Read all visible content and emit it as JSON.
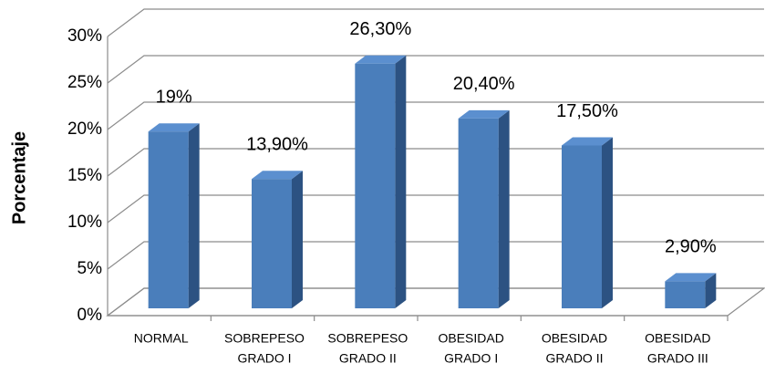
{
  "chart_data": {
    "type": "bar3d",
    "ylabel": "Porcentaje",
    "categories": [
      [
        "NORMAL"
      ],
      [
        "SOBREPESO",
        "GRADO I"
      ],
      [
        "SOBREPESO",
        "GRADO II"
      ],
      [
        "OBESIDAD",
        "GRADO I"
      ],
      [
        "OBESIDAD",
        "GRADO II"
      ],
      [
        "OBESIDAD",
        "GRADO III"
      ]
    ],
    "values": [
      19,
      13.9,
      26.3,
      20.4,
      17.5,
      2.9
    ],
    "value_labels": [
      "19%",
      "13,90%",
      "26,30%",
      "20,40%",
      "17,50%",
      "2,90%"
    ],
    "color": "#4a7ebb",
    "ylim": [
      0,
      30
    ],
    "yticks": [
      {
        "value": 0,
        "label": "0%"
      },
      {
        "value": 5,
        "label": "5%"
      },
      {
        "value": 10,
        "label": "10%"
      },
      {
        "value": 15,
        "label": "15%"
      },
      {
        "value": 20,
        "label": "20%"
      },
      {
        "value": 25,
        "label": "25%"
      },
      {
        "value": 30,
        "label": "30%"
      }
    ],
    "grid": true
  }
}
